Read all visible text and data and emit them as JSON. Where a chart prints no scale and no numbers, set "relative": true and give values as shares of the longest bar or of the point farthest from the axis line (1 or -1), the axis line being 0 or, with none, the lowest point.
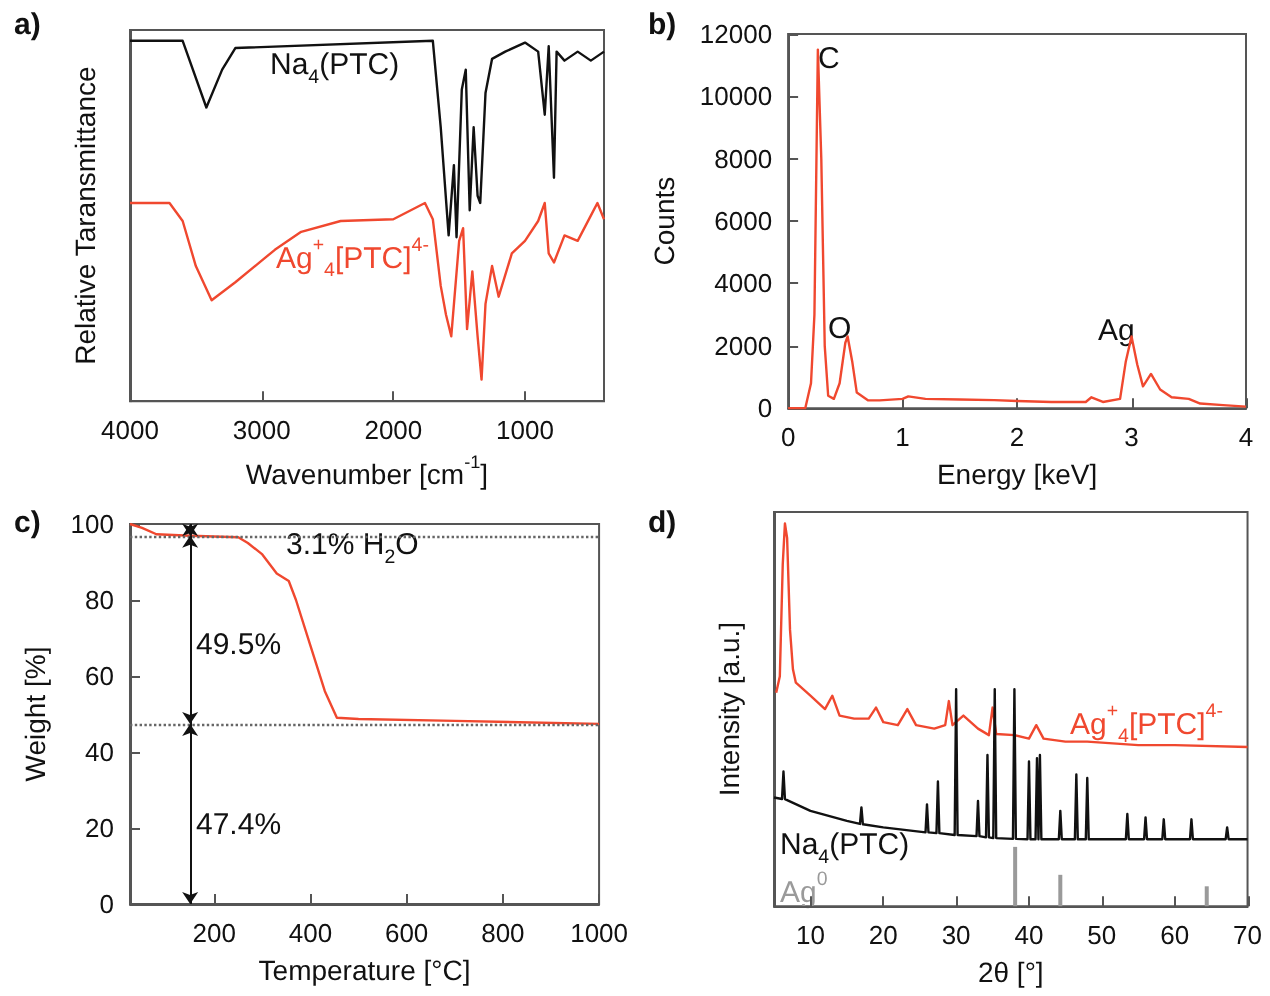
{
  "chart_data": [
    {
      "type": "line",
      "title": "a)",
      "xlabel": "Wavenumber [cm$^{-1}$]",
      "ylabel": "Relative Taransmittance",
      "relative": true,
      "xlim": [
        4000,
        400
      ],
      "xticks": [
        4000,
        3000,
        2000,
        1000
      ],
      "grid": false,
      "series": [
        {
          "name": "Na$_{4}$(PTC)",
          "color": "#111111",
          "x": [
            4000,
            3600,
            3420,
            3300,
            3200,
            1700,
            1640,
            1580,
            1540,
            1520,
            1480,
            1450,
            1420,
            1390,
            1360,
            1340,
            1300,
            1250,
            1150,
            1000,
            900,
            850,
            820,
            780,
            760,
            700,
            600,
            500,
            400
          ],
          "values": [
            1.0,
            1.0,
            0.815,
            0.92,
            0.98,
            1.0,
            0.76,
            0.46,
            0.655,
            0.455,
            0.865,
            0.92,
            0.53,
            0.76,
            0.57,
            0.55,
            0.855,
            0.95,
            0.97,
            0.995,
            0.97,
            0.795,
            0.985,
            0.62,
            0.97,
            0.945,
            0.97,
            0.945,
            0.97
          ]
        },
        {
          "name": "Ag$^{+}$$_{4}$[PTC]$^{4-}$",
          "color": "#f0482f",
          "x": [
            4000,
            3700,
            3600,
            3500,
            3380,
            3200,
            3000,
            2900,
            2700,
            2400,
            2000,
            1760,
            1700,
            1640,
            1600,
            1560,
            1500,
            1470,
            1440,
            1400,
            1360,
            1330,
            1300,
            1250,
            1200,
            1100,
            1000,
            900,
            850,
            820,
            780,
            700,
            600,
            500,
            450,
            400
          ],
          "values": [
            0.55,
            0.55,
            0.5,
            0.375,
            0.28,
            0.33,
            0.39,
            0.42,
            0.47,
            0.5,
            0.505,
            0.55,
            0.505,
            0.32,
            0.24,
            0.18,
            0.445,
            0.48,
            0.2,
            0.36,
            0.18,
            0.06,
            0.27,
            0.375,
            0.29,
            0.41,
            0.445,
            0.5,
            0.55,
            0.41,
            0.385,
            0.46,
            0.445,
            0.515,
            0.55,
            0.505
          ]
        }
      ]
    },
    {
      "type": "line",
      "title": "b)",
      "xlabel": "Energy [keV]",
      "ylabel": "Counts",
      "xlim": [
        0,
        4
      ],
      "xticks": [
        0,
        1,
        2,
        3,
        4
      ],
      "ylim": [
        0,
        12000
      ],
      "yticks": [
        0,
        2000,
        4000,
        6000,
        8000,
        10000,
        12000
      ],
      "grid": false,
      "annotations": [
        "C",
        "O",
        "Ag"
      ],
      "series": [
        {
          "color": "#f0482f",
          "x": [
            0,
            0.15,
            0.2,
            0.23,
            0.26,
            0.29,
            0.32,
            0.35,
            0.4,
            0.45,
            0.5,
            0.52,
            0.56,
            0.6,
            0.7,
            0.8,
            1.0,
            1.05,
            1.2,
            1.5,
            1.8,
            2.0,
            2.3,
            2.6,
            2.65,
            2.75,
            2.9,
            2.95,
            3.0,
            3.05,
            3.1,
            3.17,
            3.25,
            3.35,
            3.5,
            3.6,
            3.8,
            4.0
          ],
          "values": [
            0,
            0,
            800,
            3000,
            11500,
            8000,
            2000,
            400,
            300,
            800,
            2100,
            2300,
            1500,
            500,
            250,
            250,
            300,
            380,
            300,
            280,
            260,
            230,
            200,
            200,
            350,
            200,
            300,
            1500,
            2300,
            1400,
            700,
            1100,
            600,
            350,
            300,
            150,
            100,
            50
          ]
        }
      ]
    },
    {
      "type": "line",
      "title": "c)",
      "xlabel": "Temperature [°C]",
      "ylabel": "Weight [%]",
      "xlim": [
        25,
        1000
      ],
      "xticks": [
        200,
        400,
        600,
        800,
        1000
      ],
      "ylim": [
        0,
        100
      ],
      "yticks": [
        0,
        20,
        40,
        60,
        80,
        100
      ],
      "grid": false,
      "ref_lines": [
        {
          "axis": "y",
          "value": 96.9,
          "line_style": "dotted",
          "color": "#666666"
        },
        {
          "axis": "y",
          "value": 47.4,
          "line_style": "dotted",
          "color": "#666666"
        }
      ],
      "annotations": [
        "3.1% H$_{2}$O",
        "49.5%",
        "47.4%"
      ],
      "series": [
        {
          "color": "#f0482f",
          "x": [
            25,
            50,
            80,
            150,
            250,
            270,
            300,
            330,
            355,
            370,
            400,
            430,
            455,
            500,
            700,
            1000
          ],
          "values": [
            100,
            99,
            97.3,
            96.9,
            96.5,
            95,
            92,
            87,
            85,
            80,
            68,
            56,
            49,
            48.7,
            48.2,
            47.4
          ]
        }
      ]
    },
    {
      "type": "line",
      "xlabel": "2θ [°]",
      "ylabel": "Intensity [a.u.]",
      "title": "d)",
      "relative": true,
      "xlim": [
        5,
        70
      ],
      "xticks": [
        10,
        20,
        30,
        40,
        50,
        60,
        70
      ],
      "grid": false,
      "series": [
        {
          "name": "Ag$^{+}$$_{4}$[PTC]$^{4-}$",
          "color": "#f0482f",
          "x": [
            5.3,
            5.8,
            6.2,
            6.5,
            6.8,
            7.2,
            7.6,
            8,
            10,
            12,
            13,
            14,
            16,
            18,
            19,
            20,
            22,
            23.3,
            24.5,
            27,
            28.5,
            29,
            29.5,
            31,
            33,
            34.5,
            35,
            35.5,
            38,
            40,
            41,
            42,
            45,
            48,
            55,
            60,
            70
          ],
          "values": [
            0.558,
            0.601,
            0.893,
            1.0,
            0.962,
            0.722,
            0.619,
            0.584,
            0.55,
            0.515,
            0.55,
            0.498,
            0.49,
            0.49,
            0.519,
            0.481,
            0.473,
            0.515,
            0.473,
            0.464,
            0.473,
            0.536,
            0.473,
            0.498,
            0.464,
            0.447,
            0.519,
            0.45,
            0.447,
            0.438,
            0.473,
            0.438,
            0.43,
            0.43,
            0.421,
            0.421,
            0.416
          ]
        },
        {
          "name": "Na$_{4}$(PTC)",
          "color": "#111111",
          "x": [
            5,
            6.1,
            6.3,
            6.5,
            10,
            15,
            16.8,
            17,
            17.2,
            20,
            25.8,
            26,
            26.2,
            27.3,
            27.5,
            27.7,
            29.8,
            30,
            30.2,
            32.8,
            33,
            33.2,
            34.1,
            34.3,
            34.5,
            35.1,
            35.3,
            35.5,
            37.8,
            38,
            38.2,
            39.8,
            40,
            40.2,
            40.9,
            41.1,
            41.3,
            41.5,
            41.7,
            44.1,
            44.3,
            44.5,
            46.3,
            46.5,
            46.7,
            47.8,
            48,
            48.2,
            53.3,
            53.5,
            53.7,
            55.8,
            56,
            56.2,
            58.3,
            58.5,
            58.7,
            62.1,
            62.3,
            62.5,
            67,
            67.2,
            67.4,
            70
          ],
          "values": [
            0.284,
            0.28,
            0.352,
            0.28,
            0.249,
            0.223,
            0.215,
            0.258,
            0.214,
            0.206,
            0.193,
            0.266,
            0.193,
            0.191,
            0.326,
            0.191,
            0.186,
            0.567,
            0.186,
            0.183,
            0.275,
            0.183,
            0.18,
            0.395,
            0.18,
            0.178,
            0.567,
            0.178,
            0.176,
            0.567,
            0.176,
            0.175,
            0.378,
            0.175,
            0.175,
            0.387,
            0.175,
            0.395,
            0.175,
            0.175,
            0.249,
            0.175,
            0.175,
            0.344,
            0.175,
            0.175,
            0.335,
            0.175,
            0.175,
            0.241,
            0.175,
            0.175,
            0.232,
            0.175,
            0.175,
            0.227,
            0.175,
            0.175,
            0.227,
            0.175,
            0.175,
            0.206,
            0.175,
            0.175
          ]
        },
        {
          "name": "Ag$^{0}$",
          "type": "bar",
          "color": "#9a9a9a",
          "x": [
            38.1,
            44.3,
            64.4
          ],
          "values": [
            0.155,
            0.082,
            0.052
          ]
        }
      ]
    }
  ]
}
